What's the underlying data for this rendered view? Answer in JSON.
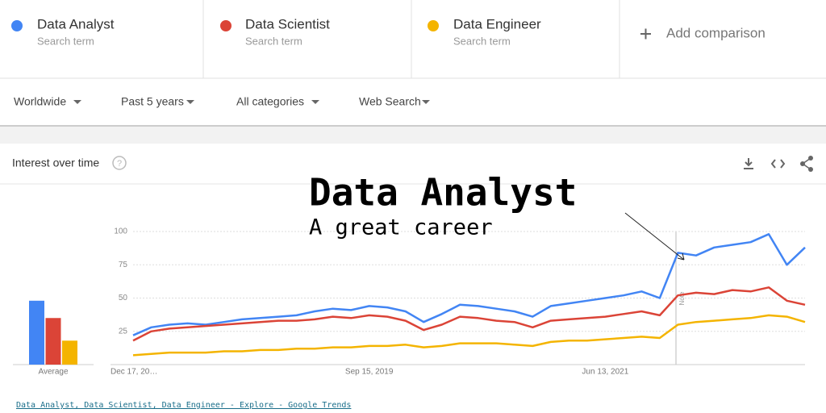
{
  "search_terms_sublabels": [
    "Search term",
    "Search term",
    "Search term"
  ],
  "add_comparison": "Add comparison",
  "filters": [
    "Worldwide",
    "Past 5 years",
    "All categories",
    "Web Search"
  ],
  "panel_title": "Interest over time",
  "annotation": {
    "title": "Data Analyst",
    "subtitle": "A great career"
  },
  "note": "Note",
  "footer_link": "Data Analyst, Data Scientist, Data Engineer - Explore - Google Trends",
  "chart_data": [
    {
      "type": "bar",
      "xlabel": "Average",
      "values": [
        48,
        35,
        18
      ],
      "colors": [
        "#4285f4",
        "#db4437",
        "#f4b400"
      ],
      "ylim": [
        0,
        100
      ]
    },
    {
      "type": "line",
      "categories": [
        "Dec 17, 20…",
        null,
        null,
        null,
        null,
        null,
        null,
        null,
        null,
        null,
        null,
        null,
        null,
        "Sep 15, 2019",
        null,
        null,
        null,
        null,
        null,
        null,
        null,
        null,
        null,
        null,
        null,
        null,
        "Jun 13, 2021",
        null,
        null,
        null,
        null,
        null,
        null,
        null,
        null,
        null,
        null,
        null
      ],
      "series": [
        {
          "name": "Data Analyst",
          "color": "#4285f4",
          "values": [
            22,
            28,
            30,
            31,
            30,
            32,
            34,
            35,
            36,
            37,
            40,
            42,
            41,
            44,
            43,
            40,
            32,
            38,
            45,
            44,
            42,
            40,
            36,
            44,
            46,
            48,
            50,
            52,
            55,
            50,
            84,
            82,
            88,
            90,
            92,
            98,
            75,
            88
          ]
        },
        {
          "name": "Data Scientist",
          "color": "#db4437",
          "values": [
            18,
            25,
            27,
            28,
            29,
            30,
            31,
            32,
            33,
            33,
            34,
            36,
            35,
            37,
            36,
            33,
            26,
            30,
            36,
            35,
            33,
            32,
            28,
            33,
            34,
            35,
            36,
            38,
            40,
            37,
            52,
            54,
            53,
            56,
            55,
            58,
            48,
            45
          ]
        },
        {
          "name": "Data Engineer",
          "color": "#f4b400",
          "values": [
            7,
            8,
            9,
            9,
            9,
            10,
            10,
            11,
            11,
            12,
            12,
            13,
            13,
            14,
            14,
            15,
            13,
            14,
            16,
            16,
            16,
            15,
            14,
            17,
            18,
            18,
            19,
            20,
            21,
            20,
            30,
            32,
            33,
            34,
            35,
            37,
            36,
            32
          ]
        }
      ],
      "ylim": [
        0,
        100
      ],
      "yticks": [
        25,
        50,
        75,
        100
      ],
      "grid": true
    }
  ]
}
